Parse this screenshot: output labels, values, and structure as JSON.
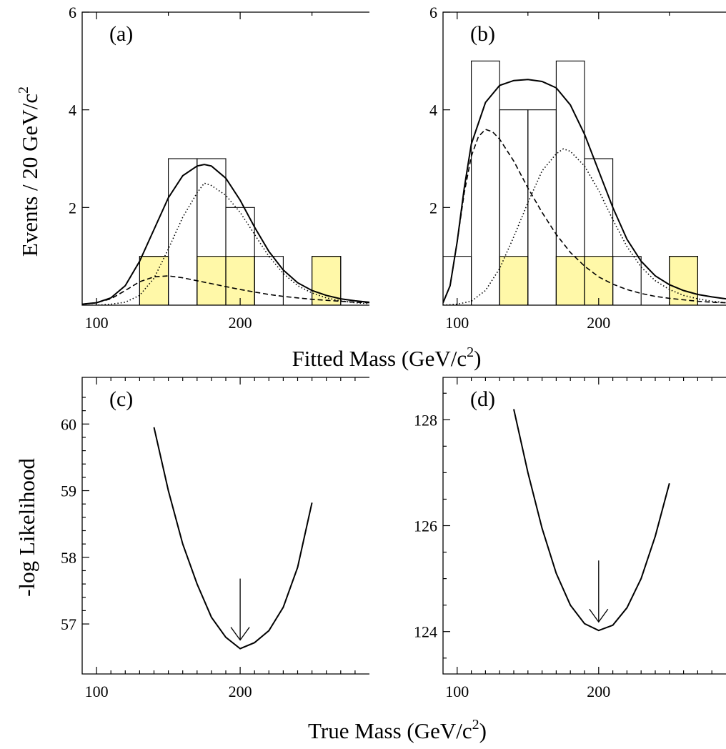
{
  "figure": {
    "top_ylabel_main": "Events / 20 GeV/c",
    "top_ylabel_sup": "2",
    "top_xlabel_main": "Fitted Mass (GeV/c",
    "top_xlabel_sup": "2",
    "top_xlabel_end": ")",
    "bottom_ylabel": "-log Likelihood",
    "bottom_xlabel_main": "True Mass (GeV/c",
    "bottom_xlabel_sup": "2",
    "bottom_xlabel_end": ")"
  },
  "colors": {
    "signal_fill": "#fff8a8",
    "line": "#000000"
  },
  "chart_data": [
    {
      "type": "bar",
      "panel_label": "(a)",
      "xlim": [
        90,
        290
      ],
      "ylim": [
        0,
        6
      ],
      "x_ticks": [
        100,
        200
      ],
      "y_ticks": [
        2,
        4,
        6
      ],
      "bin_width": 20,
      "histogram_bin_starts": [
        130,
        150,
        170,
        190,
        210,
        230,
        250
      ],
      "histogram_counts": [
        1,
        3,
        3,
        2,
        1,
        0,
        1
      ],
      "shaded_bin_starts": [
        130,
        170,
        190,
        250
      ],
      "shaded_counts": [
        1,
        1,
        1,
        1
      ],
      "curves": [
        {
          "style": "solid",
          "x": [
            90,
            100,
            110,
            120,
            130,
            140,
            150,
            160,
            170,
            175,
            180,
            190,
            200,
            210,
            220,
            230,
            240,
            250,
            260,
            270,
            280,
            290
          ],
          "y": [
            0.02,
            0.05,
            0.15,
            0.4,
            0.9,
            1.55,
            2.2,
            2.65,
            2.85,
            2.88,
            2.85,
            2.6,
            2.15,
            1.6,
            1.1,
            0.72,
            0.46,
            0.3,
            0.2,
            0.13,
            0.09,
            0.06
          ]
        },
        {
          "style": "dotted",
          "x": [
            90,
            100,
            110,
            120,
            130,
            140,
            150,
            160,
            170,
            175,
            180,
            190,
            200,
            210,
            220,
            230,
            240,
            250,
            260,
            270,
            280,
            290
          ],
          "y": [
            0.0,
            0.0,
            0.02,
            0.06,
            0.2,
            0.55,
            1.15,
            1.8,
            2.3,
            2.5,
            2.45,
            2.25,
            1.9,
            1.45,
            1.0,
            0.65,
            0.4,
            0.25,
            0.15,
            0.09,
            0.05,
            0.03
          ]
        },
        {
          "style": "dashed",
          "x": [
            90,
            100,
            110,
            120,
            130,
            140,
            150,
            160,
            170,
            180,
            190,
            200,
            210,
            220,
            230,
            240,
            250,
            260,
            270,
            280,
            290
          ],
          "y": [
            0.02,
            0.05,
            0.13,
            0.3,
            0.48,
            0.58,
            0.6,
            0.56,
            0.5,
            0.44,
            0.38,
            0.32,
            0.27,
            0.22,
            0.18,
            0.15,
            0.12,
            0.1,
            0.08,
            0.06,
            0.05
          ]
        }
      ]
    },
    {
      "type": "bar",
      "panel_label": "(b)",
      "xlim": [
        90,
        290
      ],
      "ylim": [
        0,
        6
      ],
      "x_ticks": [
        100,
        200
      ],
      "y_ticks": [
        2,
        4,
        6
      ],
      "bin_width": 20,
      "histogram_bin_starts": [
        90,
        110,
        130,
        150,
        170,
        190,
        210,
        230,
        250
      ],
      "histogram_counts": [
        1,
        5,
        4,
        4,
        5,
        3,
        1,
        0,
        1
      ],
      "shaded_bin_starts": [
        130,
        170,
        190,
        250
      ],
      "shaded_counts": [
        1,
        1,
        1,
        1
      ],
      "curves": [
        {
          "style": "solid",
          "x": [
            90,
            95,
            100,
            105,
            110,
            120,
            130,
            140,
            150,
            160,
            170,
            180,
            190,
            200,
            210,
            220,
            230,
            240,
            250,
            260,
            270,
            280,
            290
          ],
          "y": [
            0.05,
            0.4,
            1.3,
            2.4,
            3.3,
            4.15,
            4.5,
            4.6,
            4.62,
            4.58,
            4.45,
            4.1,
            3.5,
            2.75,
            2.0,
            1.35,
            0.9,
            0.6,
            0.42,
            0.3,
            0.22,
            0.17,
            0.13
          ]
        },
        {
          "style": "dashed",
          "x": [
            90,
            95,
            100,
            105,
            110,
            115,
            120,
            125,
            130,
            140,
            150,
            160,
            170,
            180,
            190,
            200,
            210,
            220,
            230,
            240,
            250,
            260,
            270,
            280,
            290
          ],
          "y": [
            0.05,
            0.4,
            1.3,
            2.3,
            3.05,
            3.45,
            3.6,
            3.55,
            3.4,
            2.95,
            2.4,
            1.9,
            1.45,
            1.08,
            0.8,
            0.58,
            0.43,
            0.32,
            0.24,
            0.18,
            0.14,
            0.11,
            0.08,
            0.06,
            0.05
          ]
        },
        {
          "style": "dotted",
          "x": [
            90,
            100,
            110,
            120,
            130,
            140,
            150,
            160,
            170,
            175,
            180,
            190,
            200,
            210,
            220,
            230,
            240,
            250,
            260,
            270,
            280,
            290
          ],
          "y": [
            0.0,
            0.02,
            0.08,
            0.3,
            0.75,
            1.4,
            2.1,
            2.75,
            3.1,
            3.2,
            3.15,
            2.85,
            2.35,
            1.75,
            1.2,
            0.78,
            0.5,
            0.32,
            0.2,
            0.13,
            0.08,
            0.05
          ]
        }
      ]
    },
    {
      "type": "line",
      "panel_label": "(c)",
      "xlim": [
        90,
        290
      ],
      "ylim": [
        56.25,
        60.7
      ],
      "x_ticks": [
        100,
        200
      ],
      "y_ticks": [
        57,
        58,
        59,
        60
      ],
      "series": [
        {
          "x": [
            140,
            150,
            160,
            170,
            180,
            190,
            200,
            210,
            220,
            230,
            240,
            250
          ],
          "y": [
            59.95,
            59.0,
            58.2,
            57.6,
            57.1,
            56.8,
            56.63,
            56.72,
            56.9,
            57.25,
            57.85,
            58.82
          ]
        }
      ],
      "annotation_arrow_x": 200
    },
    {
      "type": "line",
      "panel_label": "(d)",
      "xlim": [
        90,
        290
      ],
      "ylim": [
        123.2,
        128.8
      ],
      "x_ticks": [
        100,
        200
      ],
      "y_ticks": [
        124,
        126,
        128
      ],
      "series": [
        {
          "x": [
            140,
            150,
            160,
            170,
            180,
            190,
            200,
            210,
            220,
            230,
            240,
            250
          ],
          "y": [
            128.2,
            127.0,
            125.95,
            125.1,
            124.5,
            124.15,
            124.02,
            124.12,
            124.45,
            125.0,
            125.8,
            126.8
          ]
        }
      ],
      "annotation_arrow_x": 200
    }
  ]
}
